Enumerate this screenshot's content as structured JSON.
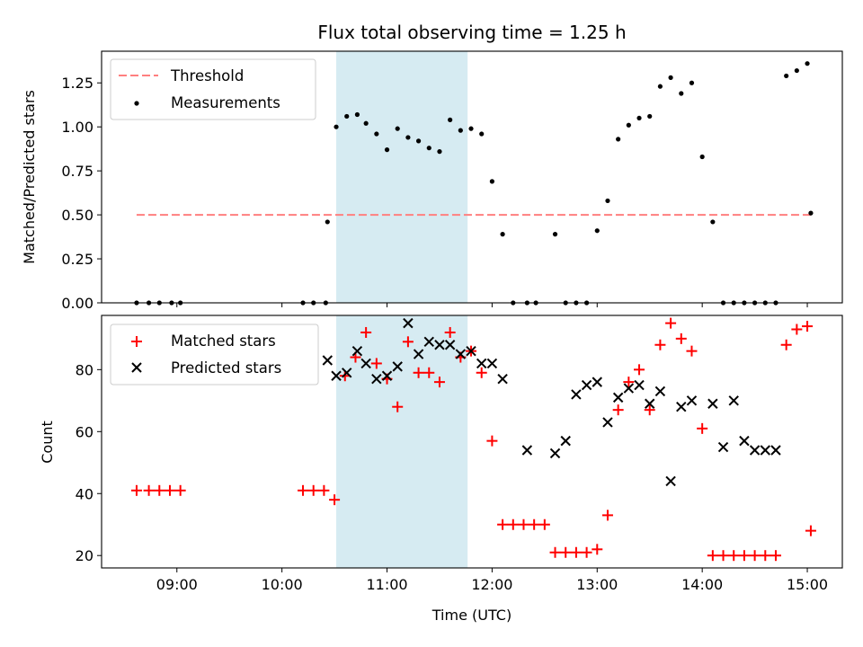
{
  "chart_data": [
    {
      "type": "scatter",
      "title": "Flux total observing time = 1.25 h",
      "xlabel": "",
      "ylabel": "Matched/Predicted stars",
      "xlim": [
        "08:17",
        "15:20"
      ],
      "ylim": [
        0,
        1.43
      ],
      "yticks": [
        0.0,
        0.25,
        0.5,
        0.75,
        1.0,
        1.25
      ],
      "ytick_labels": [
        "0.00",
        "0.25",
        "0.50",
        "0.75",
        "1.00",
        "1.25"
      ],
      "legend_position": "upper-left",
      "highlight_span": {
        "start": "10:31",
        "end": "11:46",
        "color": "#add8e6"
      },
      "series": [
        {
          "name": "Threshold",
          "kind": "dashed-line",
          "color": "#ff7f7f",
          "x": [
            "08:37",
            "15:02"
          ],
          "y": [
            0.5,
            0.5
          ]
        },
        {
          "name": "Measurements",
          "kind": "points",
          "color": "#000000",
          "x": [
            "08:37",
            "08:44",
            "08:50",
            "08:57",
            "09:02",
            "10:12",
            "10:18",
            "10:25",
            "10:26",
            "10:31",
            "10:37",
            "10:43",
            "10:48",
            "10:54",
            "11:00",
            "11:06",
            "11:12",
            "11:18",
            "11:24",
            "11:30",
            "11:36",
            "11:42",
            "11:48",
            "11:54",
            "12:00",
            "12:06",
            "12:12",
            "12:20",
            "12:25",
            "12:36",
            "12:42",
            "12:48",
            "12:54",
            "13:00",
            "13:06",
            "13:12",
            "13:18",
            "13:24",
            "13:30",
            "13:36",
            "13:42",
            "13:48",
            "13:54",
            "14:00",
            "14:06",
            "14:12",
            "14:18",
            "14:24",
            "14:30",
            "14:36",
            "14:42",
            "14:48",
            "14:54",
            "15:00",
            "15:02"
          ],
          "y": [
            0,
            0,
            0,
            0,
            0,
            0,
            0,
            0,
            0.46,
            1.0,
            1.06,
            1.07,
            1.02,
            0.96,
            0.87,
            0.99,
            0.94,
            0.92,
            0.88,
            0.86,
            1.04,
            0.98,
            0.99,
            0.96,
            0.69,
            0.39,
            0,
            0,
            0,
            0.39,
            0,
            0,
            0,
            0.41,
            0.58,
            0.93,
            1.01,
            1.05,
            1.06,
            1.23,
            1.28,
            1.19,
            1.25,
            0.83,
            0.46,
            0,
            0,
            0,
            0,
            0,
            0,
            1.29,
            1.32,
            1.36,
            0.51
          ]
        }
      ]
    },
    {
      "type": "scatter",
      "title": "",
      "xlabel": "Time (UTC)",
      "ylabel": "Count",
      "xlim": [
        "08:17",
        "15:20"
      ],
      "ylim": [
        16,
        97.5
      ],
      "yticks": [
        20,
        40,
        60,
        80
      ],
      "xticks": [
        "09:00",
        "10:00",
        "11:00",
        "12:00",
        "13:00",
        "14:00",
        "15:00"
      ],
      "legend_position": "upper-left",
      "highlight_span": {
        "start": "10:31",
        "end": "11:46",
        "color": "#add8e6"
      },
      "series": [
        {
          "name": "Matched stars",
          "marker": "+",
          "color": "#ff0000",
          "x": [
            "08:37",
            "08:44",
            "08:50",
            "08:56",
            "09:02",
            "10:12",
            "10:18",
            "10:24",
            "10:30",
            "10:36",
            "10:42",
            "10:48",
            "10:54",
            "11:00",
            "11:06",
            "11:12",
            "11:18",
            "11:24",
            "11:30",
            "11:36",
            "11:42",
            "11:48",
            "11:54",
            "12:00",
            "12:06",
            "12:12",
            "12:18",
            "12:24",
            "12:30",
            "12:36",
            "12:42",
            "12:48",
            "12:54",
            "13:00",
            "13:06",
            "13:12",
            "13:18",
            "13:24",
            "13:30",
            "13:36",
            "13:42",
            "13:48",
            "13:54",
            "14:00",
            "14:06",
            "14:12",
            "14:18",
            "14:24",
            "14:30",
            "14:36",
            "14:42",
            "14:48",
            "14:54",
            "15:00",
            "15:02"
          ],
          "y": [
            41,
            41,
            41,
            41,
            41,
            41,
            41,
            41,
            38,
            78,
            84,
            92,
            82,
            77,
            68,
            89,
            79,
            79,
            76,
            92,
            84,
            86,
            79,
            57,
            30,
            30,
            30,
            30,
            30,
            21,
            21,
            21,
            21,
            22,
            33,
            67,
            76,
            80,
            67,
            88,
            95,
            90,
            86,
            61,
            20,
            20,
            20,
            20,
            20,
            20,
            20,
            88,
            93,
            94,
            28
          ]
        },
        {
          "name": "Predicted stars",
          "marker": "x",
          "color": "#000000",
          "x": [
            "10:26",
            "10:31",
            "10:37",
            "10:43",
            "10:48",
            "10:54",
            "11:00",
            "11:06",
            "11:12",
            "11:18",
            "11:24",
            "11:30",
            "11:36",
            "11:42",
            "11:48",
            "11:54",
            "12:00",
            "12:06",
            "12:20",
            "12:36",
            "12:42",
            "12:48",
            "12:54",
            "13:00",
            "13:06",
            "13:12",
            "13:18",
            "13:24",
            "13:30",
            "13:36",
            "13:42",
            "13:48",
            "13:54",
            "14:06",
            "14:12",
            "14:18",
            "14:24",
            "14:30",
            "14:36",
            "14:42"
          ],
          "y": [
            83,
            78,
            79,
            86,
            82,
            77,
            78,
            81,
            95,
            85,
            89,
            88,
            88,
            85,
            86,
            82,
            82,
            77,
            54,
            53,
            57,
            72,
            75,
            76,
            63,
            71,
            74,
            75,
            69,
            73,
            44,
            68,
            70,
            69,
            55,
            70,
            57,
            54,
            54,
            54
          ]
        }
      ]
    }
  ]
}
